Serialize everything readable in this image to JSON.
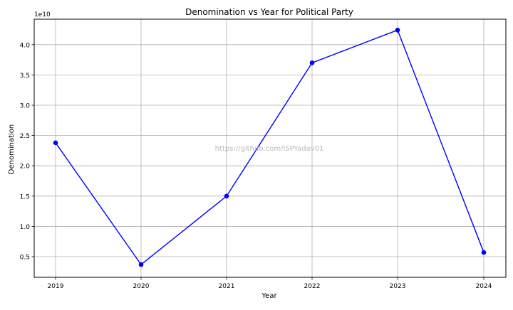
{
  "chart_data": {
    "type": "line",
    "title": "Denomination vs Year for Political Party",
    "xlabel": "Year",
    "ylabel": "Denomination",
    "y_multiplier_label": "1e10",
    "watermark": "https://github.com/iSPYadav01",
    "x": [
      "2019",
      "2020",
      "2021",
      "2022",
      "2023",
      "2024"
    ],
    "yticks": [
      0.5,
      1.0,
      1.5,
      2.0,
      2.5,
      3.0,
      3.5,
      4.0
    ],
    "ytick_labels": [
      "0.5",
      "1.0",
      "1.5",
      "2.0",
      "2.5",
      "3.0",
      "3.5",
      "4.0"
    ],
    "ylim": [
      0.16,
      4.42
    ],
    "series": [
      {
        "values": [
          2.38,
          0.37,
          1.5,
          3.7,
          4.24,
          0.57
        ],
        "color": "#0000ff",
        "marker": "circle"
      }
    ],
    "grid": true,
    "legend": "none"
  }
}
